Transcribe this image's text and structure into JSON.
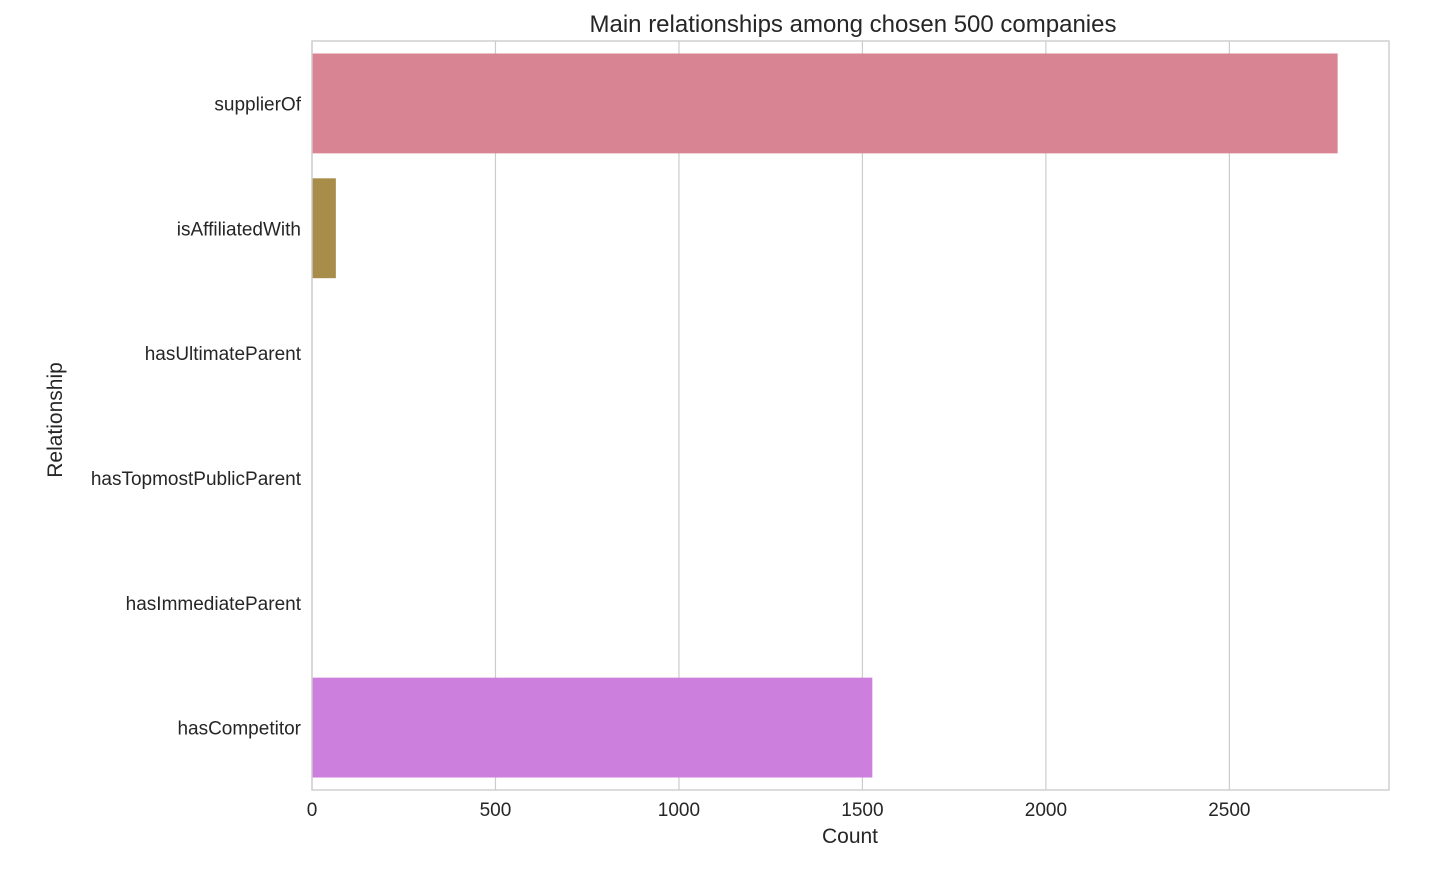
{
  "chart_data": {
    "type": "bar",
    "orientation": "horizontal",
    "title": "Main relationships among chosen 500 companies",
    "xlabel": "Count",
    "ylabel": "Relationship",
    "categories": [
      "supplierOf",
      "isAffiliatedWith",
      "hasUltimateParent",
      "hasTopmostPublicParent",
      "hasImmediateParent",
      "hasCompetitor"
    ],
    "values": [
      2795,
      65,
      0,
      0,
      0,
      1527
    ],
    "colors": [
      "#d98492",
      "#a88c4a",
      "#6fa85a",
      "#4aa3a3",
      "#6e9fd8",
      "#cd7fdd"
    ],
    "xlim": [
      0,
      2935
    ],
    "xticks": [
      0,
      500,
      1000,
      1500,
      2000,
      2500
    ],
    "grid": "vertical",
    "legend": "none"
  }
}
